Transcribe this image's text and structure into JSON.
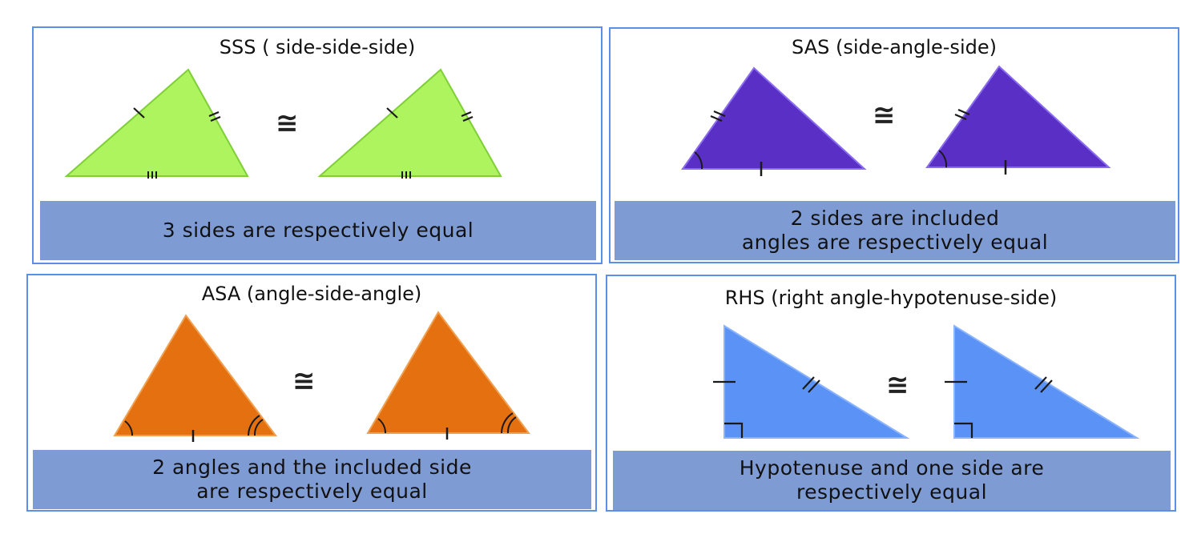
{
  "panels": {
    "sss": {
      "title": "SSS ( side-side-side)",
      "symbol": "≅",
      "caption": [
        "3 sides are respectively equal"
      ],
      "fill": "#adf45e",
      "stroke": "#7fcf36"
    },
    "sas": {
      "title": "SAS (side-angle-side)",
      "symbol": "≅",
      "caption": [
        "2 sides are included",
        "angles are respectively equal"
      ],
      "fill": "#5a2fc6",
      "stroke": "#8a6cf0"
    },
    "asa": {
      "title": "ASA (angle-side-angle)",
      "symbol": "≅",
      "caption": [
        "2 angles and the included side",
        "are respectively equal"
      ],
      "fill": "#e5700f",
      "stroke": "#f0a050"
    },
    "rhs": {
      "title": "RHS (right angle-hypotenuse-side)",
      "symbol": "≅",
      "caption": [
        "Hypotenuse and one side are",
        "respectively equal"
      ],
      "fill": "#5b92f5",
      "stroke": "#8ab4ff"
    }
  },
  "colors": {
    "border": "#5b8fe8",
    "caption_bg": "#7f9bd4",
    "mark": "#1a1a1a"
  }
}
